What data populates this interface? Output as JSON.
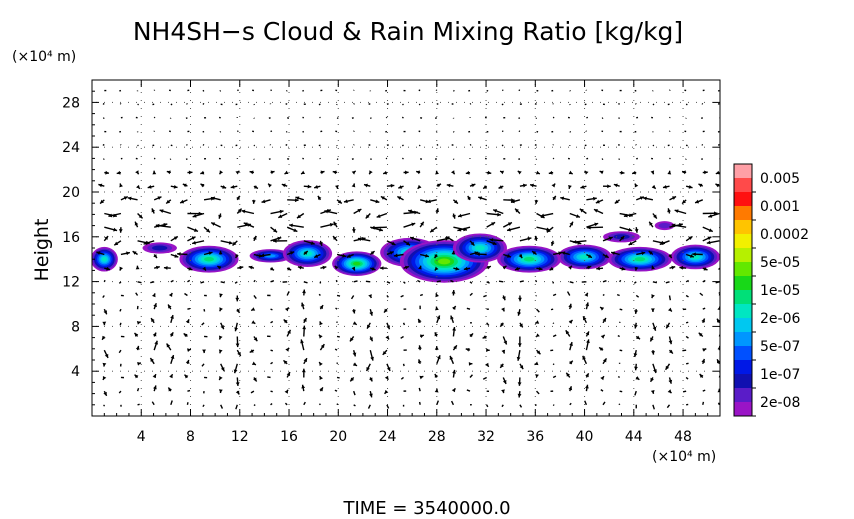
{
  "chart_data": {
    "type": "heatmap",
    "title": "NH4SH−s Cloud & Rain Mixing Ratio [kg/kg]",
    "ylabel": "Height",
    "y_unit": "(×10⁴ m)",
    "x_unit": "(×10⁴ m)",
    "footer": "TIME  =  3540000.0",
    "xlim": [
      0,
      51
    ],
    "ylim": [
      0,
      30
    ],
    "x_ticks": [
      4,
      8,
      12,
      16,
      20,
      24,
      28,
      32,
      36,
      40,
      44,
      48
    ],
    "y_ticks": [
      4,
      8,
      12,
      16,
      20,
      24,
      28
    ],
    "grid": true,
    "overlay": "wind vectors",
    "colorbar": {
      "labels": [
        "0.005",
        "0.001",
        "0.0002",
        "5e-05",
        "1e-05",
        "2e-06",
        "5e-07",
        "1e-07",
        "2e-08"
      ],
      "colors_top_to_bottom": [
        "#ff9fa6",
        "#ff4a4a",
        "#ff1010",
        "#ff7a00",
        "#ffc400",
        "#f2f000",
        "#b6f000",
        "#62e800",
        "#18d818",
        "#00e078",
        "#00e6c2",
        "#00c8f0",
        "#0096ff",
        "#0050ff",
        "#0018e6",
        "#1010b0",
        "#5a1cc8",
        "#9a14c6"
      ]
    },
    "cloud_patches": [
      {
        "x": 1.0,
        "y": 14.0,
        "rx": 1.1,
        "ry": 1.1,
        "level": 0.55
      },
      {
        "x": 5.5,
        "y": 15.0,
        "rx": 1.4,
        "ry": 0.5,
        "level": 0.15
      },
      {
        "x": 9.5,
        "y": 14.0,
        "rx": 2.4,
        "ry": 1.2,
        "level": 0.65
      },
      {
        "x": 14.5,
        "y": 14.3,
        "rx": 1.7,
        "ry": 0.6,
        "level": 0.45
      },
      {
        "x": 17.5,
        "y": 14.5,
        "rx": 2.0,
        "ry": 1.2,
        "level": 0.55
      },
      {
        "x": 21.5,
        "y": 13.6,
        "rx": 2.0,
        "ry": 1.1,
        "level": 0.75
      },
      {
        "x": 25.8,
        "y": 14.6,
        "rx": 2.4,
        "ry": 1.3,
        "level": 0.55
      },
      {
        "x": 28.6,
        "y": 13.8,
        "rx": 3.6,
        "ry": 1.9,
        "level": 0.85
      },
      {
        "x": 31.5,
        "y": 15.0,
        "rx": 2.2,
        "ry": 1.3,
        "level": 0.6
      },
      {
        "x": 35.5,
        "y": 14.0,
        "rx": 2.6,
        "ry": 1.2,
        "level": 0.7
      },
      {
        "x": 40.0,
        "y": 14.2,
        "rx": 2.2,
        "ry": 1.1,
        "level": 0.55
      },
      {
        "x": 44.5,
        "y": 14.0,
        "rx": 2.6,
        "ry": 1.1,
        "level": 0.65
      },
      {
        "x": 49.0,
        "y": 14.2,
        "rx": 2.0,
        "ry": 1.1,
        "level": 0.55
      },
      {
        "x": 43.0,
        "y": 16.0,
        "rx": 1.5,
        "ry": 0.5,
        "level": 0.15
      },
      {
        "x": 46.5,
        "y": 17.0,
        "rx": 0.8,
        "ry": 0.4,
        "level": 0.05
      }
    ]
  }
}
